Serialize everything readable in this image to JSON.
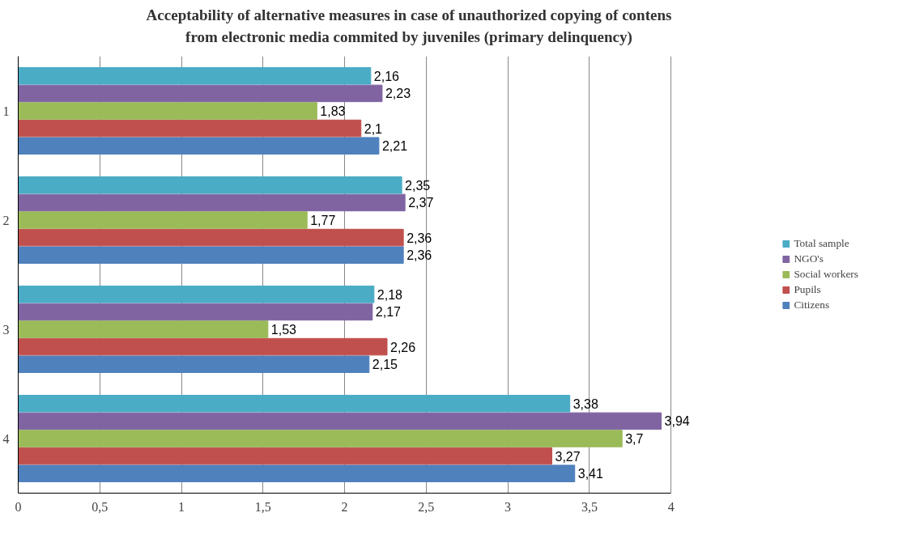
{
  "chart_data": {
    "type": "bar",
    "orientation": "horizontal",
    "title": "Acceptability  of alternative measures in case of unauthorized copying of contens\nfrom electronic media commited by juveniles (primary delinquency)",
    "categories": [
      "1",
      "2",
      "3",
      "4"
    ],
    "series": [
      {
        "name": "Citizens",
        "color": "#4f81bd",
        "values": [
          2.21,
          2.36,
          2.15,
          3.41
        ],
        "value_labels": [
          "2,21",
          "2,36",
          "2,15",
          "3,41"
        ]
      },
      {
        "name": "Pupils",
        "color": "#c0504d",
        "values": [
          2.1,
          2.36,
          2.26,
          3.27
        ],
        "value_labels": [
          "2,1",
          "2,36",
          "2,26",
          "3,27"
        ]
      },
      {
        "name": "Social workers",
        "color": "#9bbb59",
        "values": [
          1.83,
          1.77,
          1.53,
          3.7
        ],
        "value_labels": [
          "1,83",
          "1,77",
          "1,53",
          "3,7"
        ]
      },
      {
        "name": "NGO's",
        "color": "#8064a2",
        "values": [
          2.23,
          2.37,
          2.17,
          3.94
        ],
        "value_labels": [
          "2,23",
          "2,37",
          "2,17",
          "3,94"
        ]
      },
      {
        "name": "Total sample",
        "color": "#4bacc6",
        "values": [
          2.16,
          2.35,
          2.18,
          3.38
        ],
        "value_labels": [
          "2,16",
          "2,35",
          "2,18",
          "3,38"
        ]
      }
    ],
    "xlim": [
      0,
      4
    ],
    "xticks": [
      0,
      {
        "value": 0.5,
        "label": "0,5"
      },
      1,
      {
        "value": 1.5,
        "label": "1,5"
      },
      2,
      {
        "value": 2.5,
        "label": "2,5"
      },
      3,
      {
        "value": 3.5,
        "label": "3,5"
      },
      4
    ],
    "grid": "x",
    "legend": "right"
  }
}
